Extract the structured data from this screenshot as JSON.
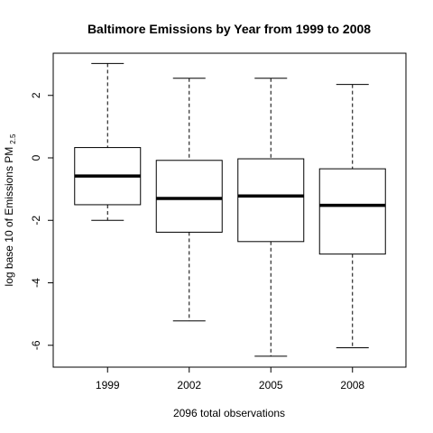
{
  "chart_data": {
    "type": "boxplot",
    "title": "Baltimore Emissions by Year from 1999 to 2008",
    "xlabel": "2096 total observations",
    "ylabel": "log base 10 of Emissions PM",
    "ylabel_subscript": "2.5",
    "categories": [
      "1999",
      "2002",
      "2005",
      "2008"
    ],
    "boxes": [
      {
        "category": "1999",
        "whisker_low": -2.0,
        "q1": -1.5,
        "median": -0.58,
        "q3": 0.33,
        "whisker_high": 3.02
      },
      {
        "category": "2002",
        "whisker_low": -5.22,
        "q1": -2.38,
        "median": -1.3,
        "q3": -0.08,
        "whisker_high": 2.55
      },
      {
        "category": "2005",
        "whisker_low": -6.35,
        "q1": -2.68,
        "median": -1.22,
        "q3": -0.03,
        "whisker_high": 2.55
      },
      {
        "category": "2008",
        "whisker_low": -6.08,
        "q1": -3.08,
        "median": -1.52,
        "q3": -0.35,
        "whisker_high": 2.35
      }
    ],
    "yticks": [
      2,
      0,
      -2,
      -4,
      -6
    ],
    "ytick_labels": [
      "2",
      "0",
      "-2",
      "-4",
      "-6"
    ],
    "ylim": [
      -6.7,
      3.35
    ],
    "grid": false,
    "legend": false
  }
}
